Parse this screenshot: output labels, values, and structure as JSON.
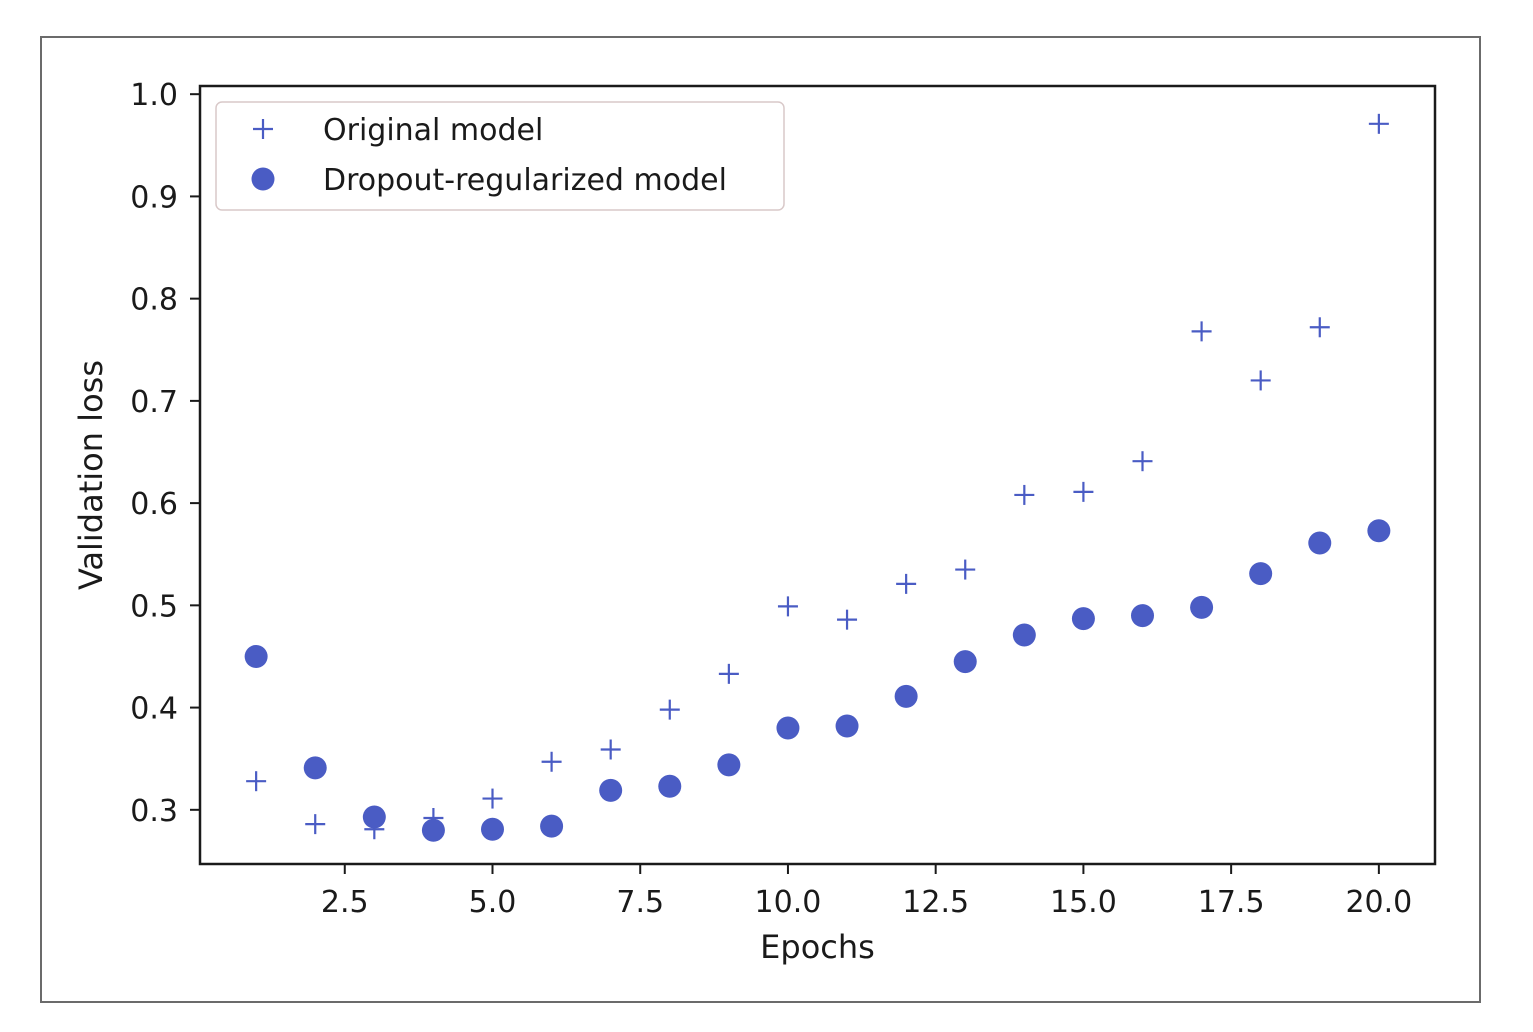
{
  "chart_data": {
    "type": "scatter",
    "xlabel": "Epochs",
    "ylabel": "Validation loss",
    "xlim": [
      0.05,
      20.95
    ],
    "ylim": [
      0.247,
      1.008
    ],
    "x_ticks": [
      2.5,
      5.0,
      7.5,
      10.0,
      12.5,
      15.0,
      17.5,
      20.0
    ],
    "x_tick_labels": [
      "2.5",
      "5.0",
      "7.5",
      "10.0",
      "12.5",
      "15.0",
      "17.5",
      "20.0"
    ],
    "y_ticks": [
      0.3,
      0.4,
      0.5,
      0.6,
      0.7,
      0.8,
      0.9,
      1.0
    ],
    "y_tick_labels": [
      "0.3",
      "0.4",
      "0.5",
      "0.6",
      "0.7",
      "0.8",
      "0.9",
      "1.0"
    ],
    "grid": false,
    "legend_position": "top-left",
    "series": [
      {
        "name": "Original model",
        "marker": "plus",
        "color": "#4a5cc4",
        "x": [
          1,
          2,
          3,
          4,
          5,
          6,
          7,
          8,
          9,
          10,
          11,
          12,
          13,
          14,
          15,
          16,
          17,
          18,
          19,
          20
        ],
        "y": [
          0.328,
          0.286,
          0.281,
          0.292,
          0.311,
          0.347,
          0.359,
          0.398,
          0.433,
          0.499,
          0.486,
          0.521,
          0.535,
          0.608,
          0.611,
          0.641,
          0.768,
          0.72,
          0.772,
          0.971
        ]
      },
      {
        "name": "Dropout-regularized model",
        "marker": "circle",
        "color": "#4a5cc4",
        "x": [
          1,
          2,
          3,
          4,
          5,
          6,
          7,
          8,
          9,
          10,
          11,
          12,
          13,
          14,
          15,
          16,
          17,
          18,
          19,
          20
        ],
        "y": [
          0.45,
          0.341,
          0.293,
          0.28,
          0.281,
          0.284,
          0.319,
          0.323,
          0.344,
          0.38,
          0.382,
          0.411,
          0.445,
          0.471,
          0.487,
          0.49,
          0.498,
          0.531,
          0.561,
          0.573
        ]
      }
    ]
  }
}
